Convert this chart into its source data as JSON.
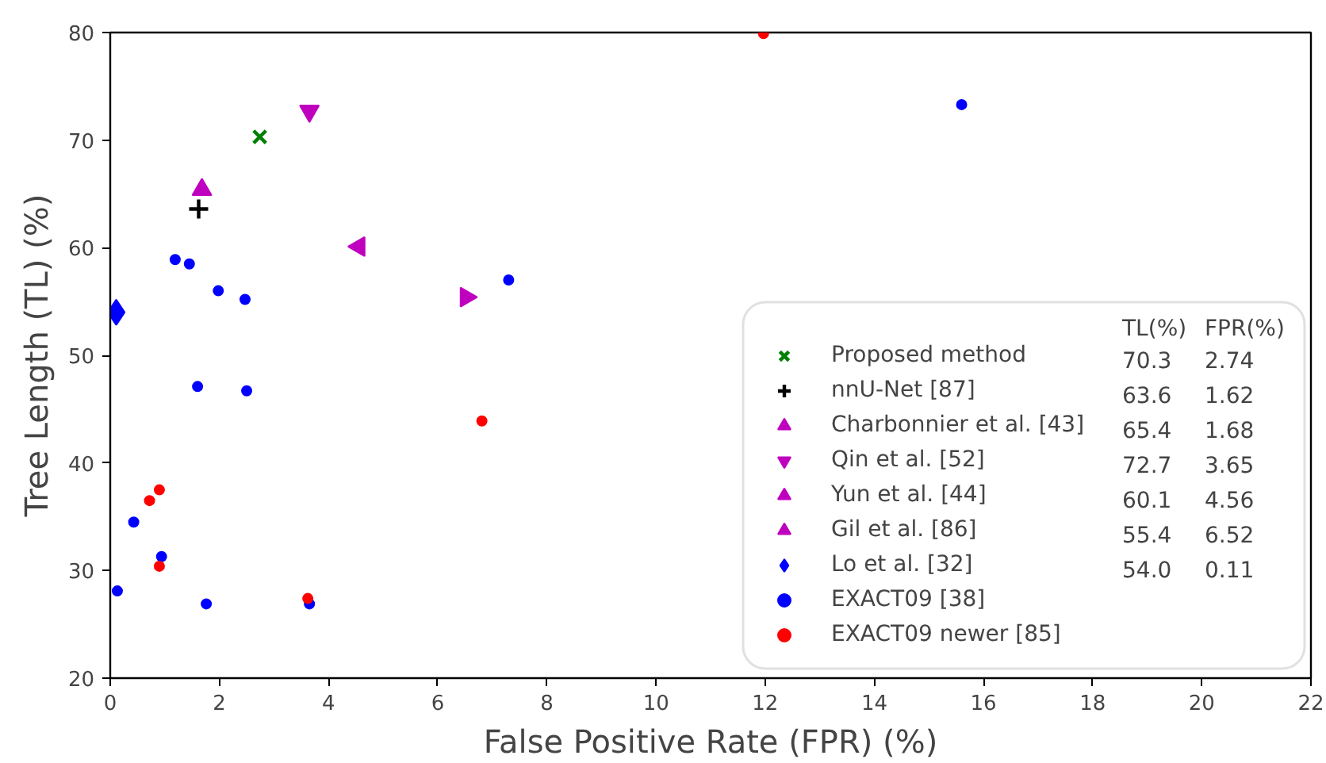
{
  "chart_data": {
    "type": "scatter",
    "xlabel": "False Positive Rate (FPR) (%)",
    "ylabel": "Tree Length (TL) (%)",
    "xlim": [
      0,
      22
    ],
    "ylim": [
      20,
      80
    ],
    "xticks": [
      0,
      2,
      4,
      6,
      8,
      10,
      12,
      14,
      16,
      18,
      20,
      22
    ],
    "yticks": [
      20,
      30,
      40,
      50,
      60,
      70,
      80
    ],
    "grid": false,
    "legend": "bottom right",
    "annotations": [
      "TL(%)",
      "FPR(%)",
      "70.3",
      "2.74",
      "63.6",
      "1.62",
      "65.4",
      "1.68",
      "72.7",
      "3.65",
      "60.1",
      "4.56",
      "55.4",
      "6.52",
      "54.0",
      "0.11"
    ],
    "series": [
      {
        "name": "Proposed method",
        "color": "#008000",
        "marker": "x",
        "x": [
          2.74
        ],
        "values": [
          70.3
        ]
      },
      {
        "name": "nnU-Net [87]",
        "color": "#000000",
        "marker": "cross",
        "x": [
          1.62
        ],
        "values": [
          63.6
        ]
      },
      {
        "name": "Charbonnier et al. [43]",
        "color": "#bf00bf",
        "marker": "triangle",
        "x": [
          1.68
        ],
        "values": [
          65.4
        ]
      },
      {
        "name": "Qin et al. [52]",
        "color": "#bf00bf",
        "marker": "triangle_down",
        "x": [
          3.65
        ],
        "values": [
          72.7
        ]
      },
      {
        "name": "Yun et al. [44]",
        "color": "#bf00bf",
        "marker": "triangle_left",
        "x": [
          4.56
        ],
        "values": [
          60.1
        ]
      },
      {
        "name": "Gil et al. [86]",
        "color": "#bf00bf",
        "marker": "triangle_right",
        "x": [
          6.52
        ],
        "values": [
          55.4
        ]
      },
      {
        "name": "Lo et al. [32]",
        "color": "#0000ff",
        "marker": "diamond",
        "x": [
          0.11
        ],
        "values": [
          54.0
        ]
      },
      {
        "name": "EXACT09 [38]",
        "color": "#0000ff",
        "marker": "circle",
        "x": [
          1.19,
          1.45,
          1.98,
          2.47,
          1.6,
          2.5,
          7.3,
          15.6,
          0.43,
          0.94,
          0.13,
          1.76,
          3.65
        ],
        "values": [
          58.9,
          58.5,
          56.0,
          55.2,
          47.1,
          46.7,
          57.0,
          73.3,
          34.5,
          31.3,
          28.1,
          26.9,
          26.9
        ]
      },
      {
        "name": "EXACT09 newer [85]",
        "color": "#ff0000",
        "marker": "circle",
        "x": [
          0.9,
          0.72,
          0.9,
          3.62,
          6.81,
          11.97
        ],
        "values": [
          37.5,
          36.5,
          30.4,
          27.4,
          43.9,
          79.9
        ]
      }
    ]
  }
}
